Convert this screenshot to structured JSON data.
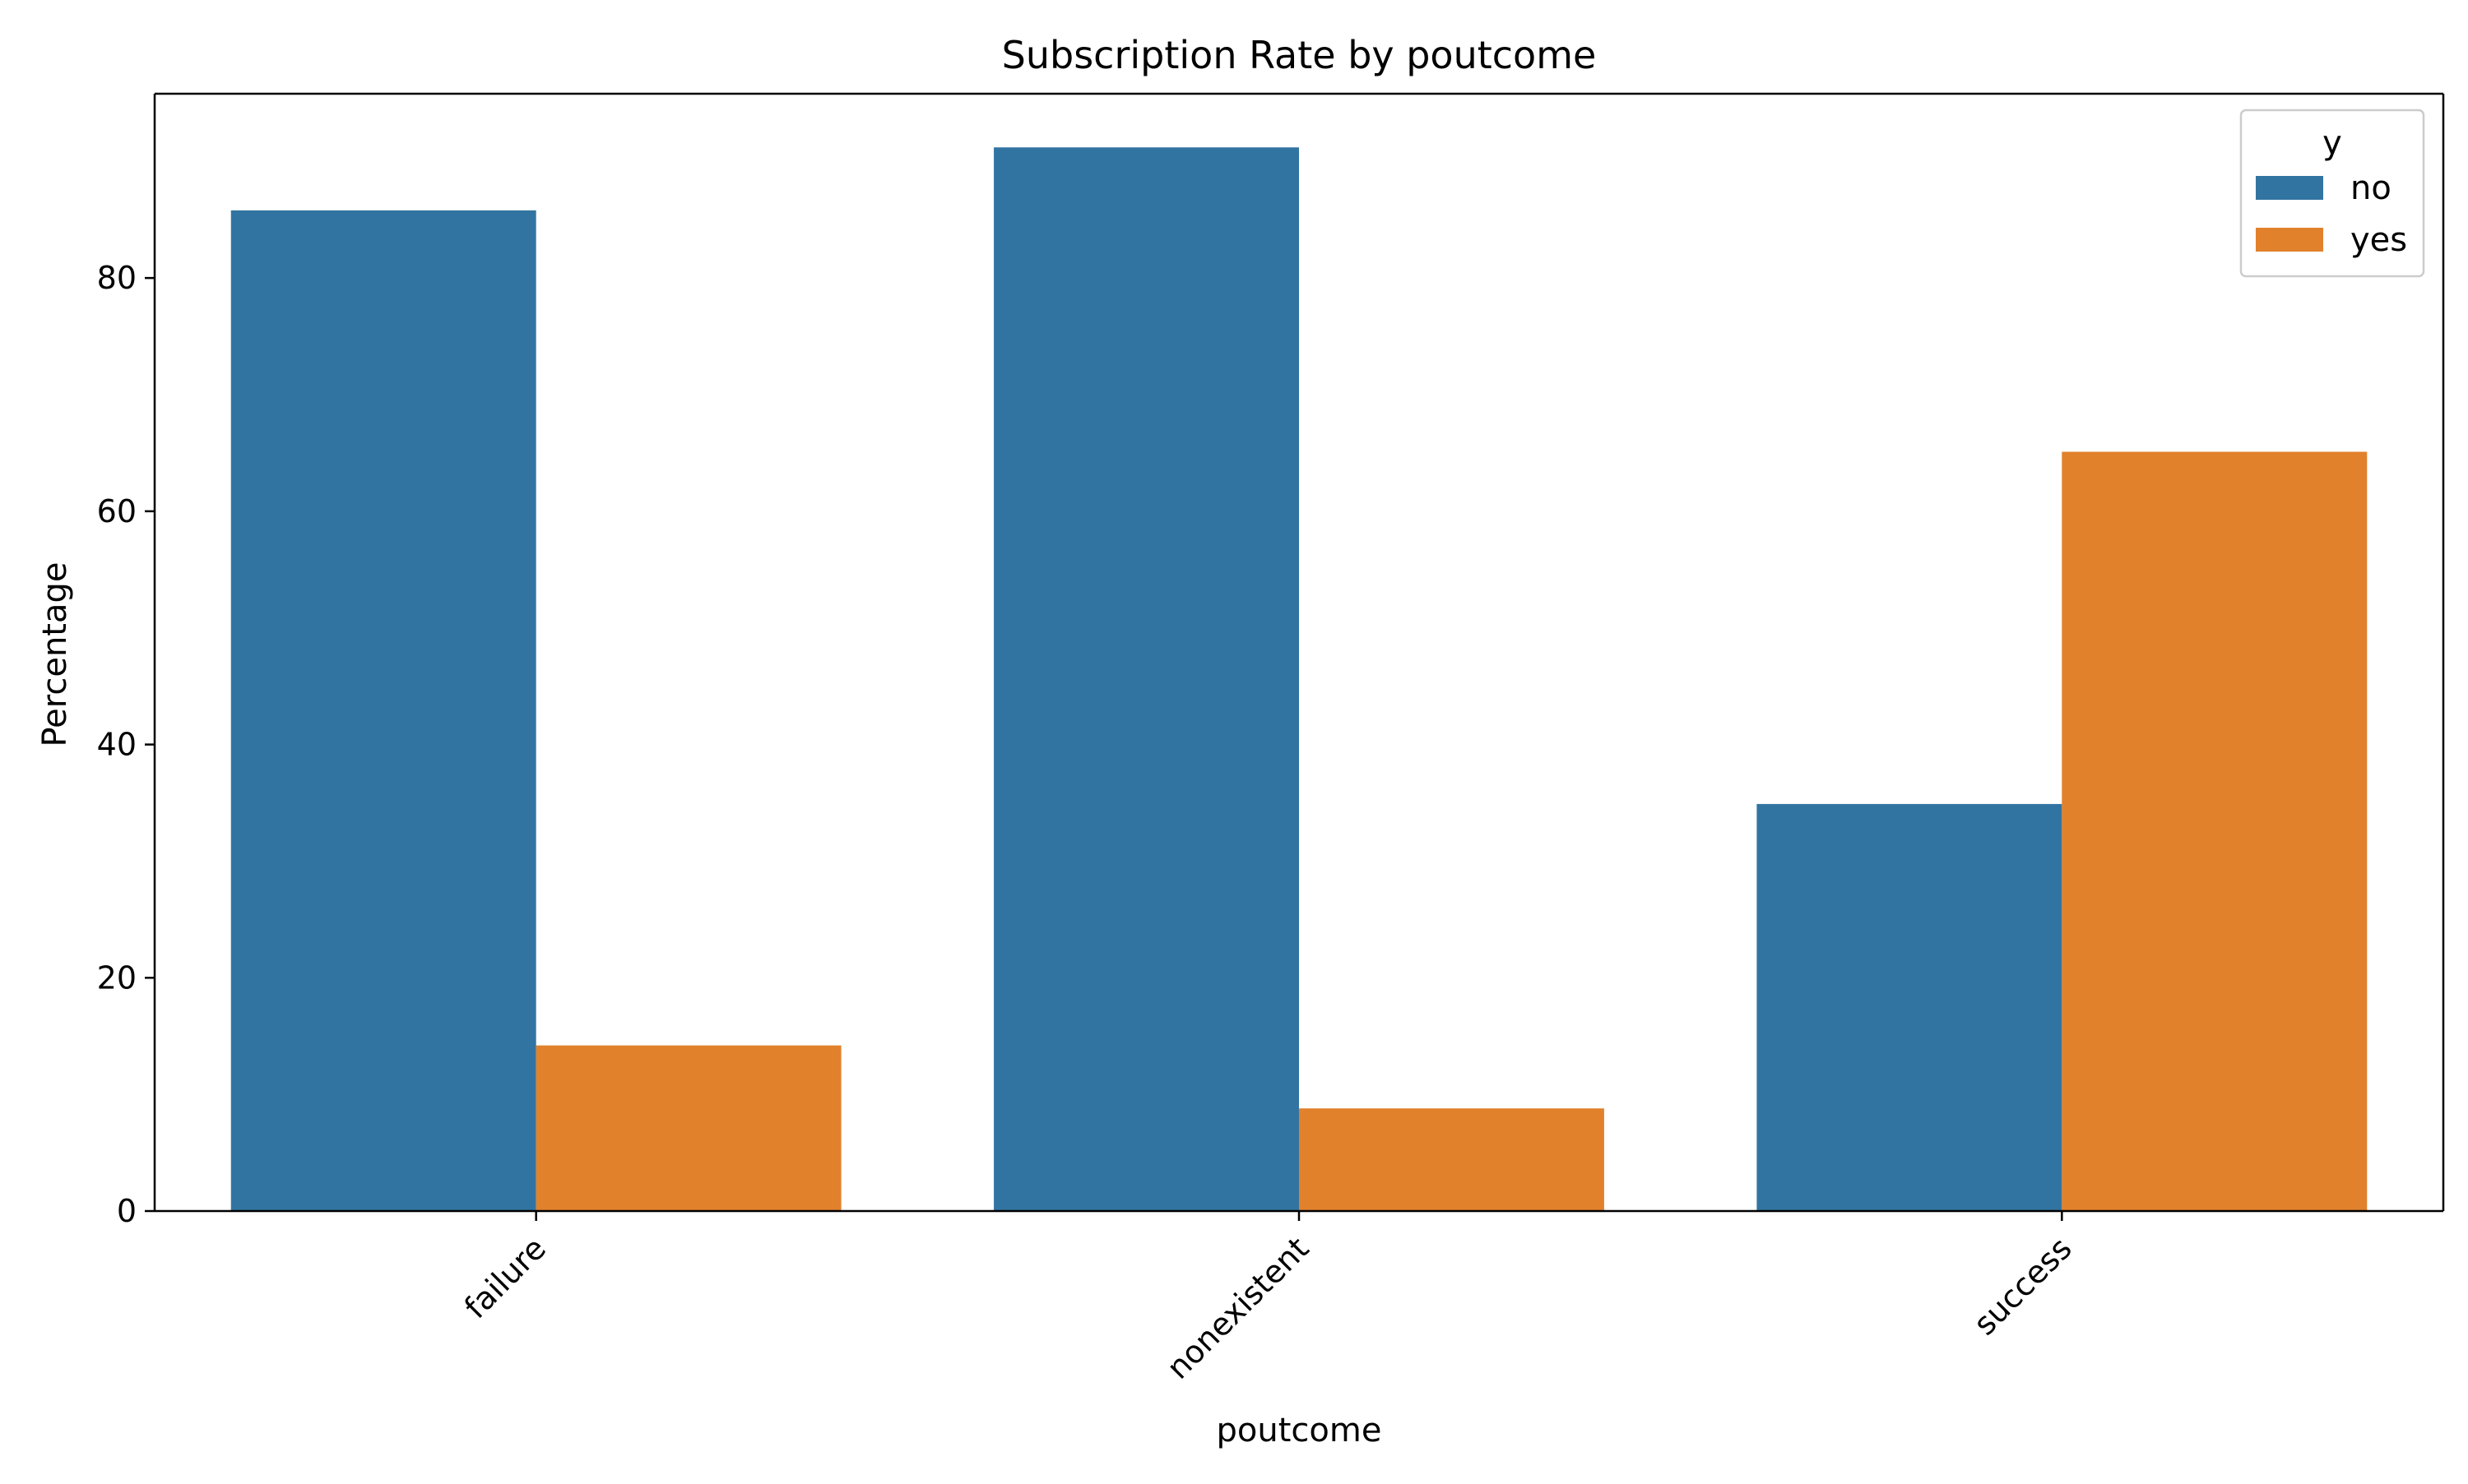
{
  "chart_data": {
    "type": "bar",
    "title": "Subscription Rate by poutcome",
    "xlabel": "poutcome",
    "ylabel": "Percentage",
    "categories": [
      "failure",
      "nonexistent",
      "success"
    ],
    "series": [
      {
        "name": "no",
        "color": "#3274a1",
        "values": [
          85.8,
          91.2,
          34.9
        ]
      },
      {
        "name": "yes",
        "color": "#e1812c",
        "values": [
          14.2,
          8.8,
          65.1
        ]
      }
    ],
    "ylim": [
      0,
      95.8
    ],
    "yticks": [
      0,
      20,
      40,
      60,
      80
    ],
    "grid": false,
    "legend": {
      "title": "y",
      "placement": "top-right"
    }
  }
}
